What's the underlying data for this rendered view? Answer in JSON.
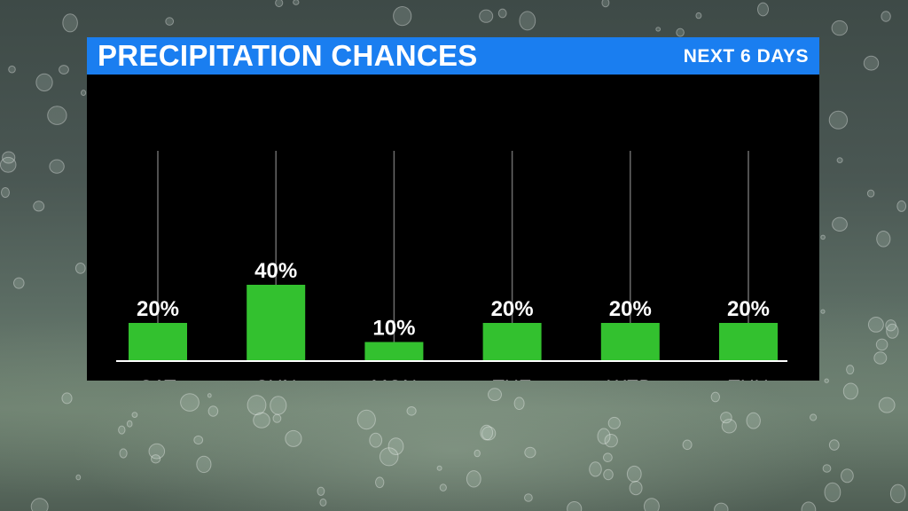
{
  "header": {
    "title": "PRECIPITATION CHANCES",
    "subtitle": "NEXT 6 DAYS"
  },
  "colors": {
    "bar": "#33c12f",
    "header": "#1a7ef0",
    "panel": "#000000",
    "text": "#ffffff",
    "gridline": "#6a6a6a"
  },
  "chart_data": {
    "type": "bar",
    "title": "PRECIPITATION CHANCES",
    "subtitle": "NEXT 6 DAYS",
    "categories": [
      "SAT",
      "SUN",
      "MON",
      "TUE",
      "WED",
      "THU"
    ],
    "values": [
      20,
      40,
      10,
      20,
      20,
      20
    ],
    "value_labels": [
      "20%",
      "40%",
      "10%",
      "20%",
      "20%",
      "20%"
    ],
    "unit": "%",
    "ylim": [
      0,
      100
    ],
    "grid": true,
    "legend": "none"
  }
}
